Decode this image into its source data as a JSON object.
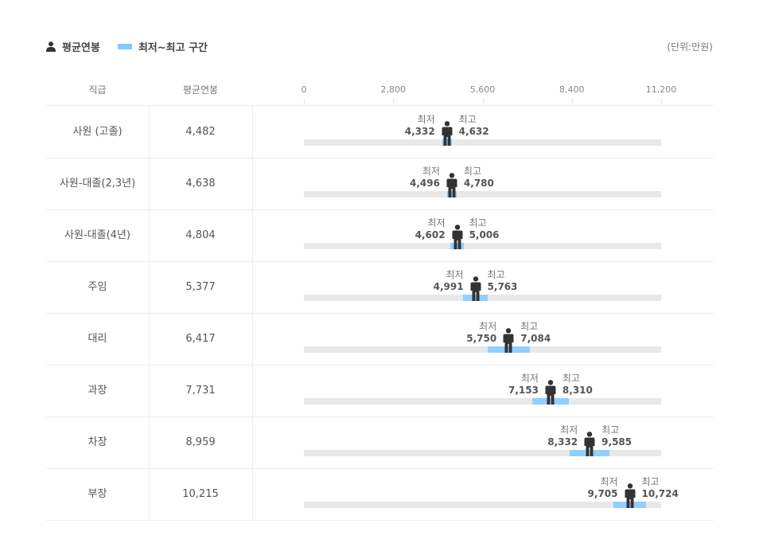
{
  "legend": {
    "avg_label": "평균연봉",
    "range_label": "최저~최고 구간",
    "unit": "(단위:만원)"
  },
  "colors": {
    "range": "#8fd0ff",
    "track": "#e8e8e8",
    "icon": "#333333"
  },
  "chart_data": {
    "type": "range-bar",
    "headers": {
      "rank": "직급",
      "avg": "평균연봉"
    },
    "xlim": [
      0,
      11200
    ],
    "ticks": [
      "0",
      "2,800",
      "5,600",
      "8,400",
      "11,200"
    ],
    "min_label": "최저",
    "max_label": "최고",
    "rows": [
      {
        "rank": "사원 (고졸)",
        "avg": 4482,
        "avg_text": "4,482",
        "min": 4332,
        "min_text": "4,332",
        "max": 4632,
        "max_text": "4,632"
      },
      {
        "rank": "사원-대졸(2,3년)",
        "avg": 4638,
        "avg_text": "4,638",
        "min": 4496,
        "min_text": "4,496",
        "max": 4780,
        "max_text": "4,780"
      },
      {
        "rank": "사원-대졸(4년)",
        "avg": 4804,
        "avg_text": "4,804",
        "min": 4602,
        "min_text": "4,602",
        "max": 5006,
        "max_text": "5,006"
      },
      {
        "rank": "주임",
        "avg": 5377,
        "avg_text": "5,377",
        "min": 4991,
        "min_text": "4,991",
        "max": 5763,
        "max_text": "5,763"
      },
      {
        "rank": "대리",
        "avg": 6417,
        "avg_text": "6,417",
        "min": 5750,
        "min_text": "5,750",
        "max": 7084,
        "max_text": "7,084"
      },
      {
        "rank": "과장",
        "avg": 7731,
        "avg_text": "7,731",
        "min": 7153,
        "min_text": "7,153",
        "max": 8310,
        "max_text": "8,310"
      },
      {
        "rank": "차장",
        "avg": 8959,
        "avg_text": "8,959",
        "min": 8332,
        "min_text": "8,332",
        "max": 9585,
        "max_text": "9,585"
      },
      {
        "rank": "부장",
        "avg": 10215,
        "avg_text": "10,215",
        "min": 9705,
        "min_text": "9,705",
        "max": 10724,
        "max_text": "10,724"
      }
    ]
  }
}
